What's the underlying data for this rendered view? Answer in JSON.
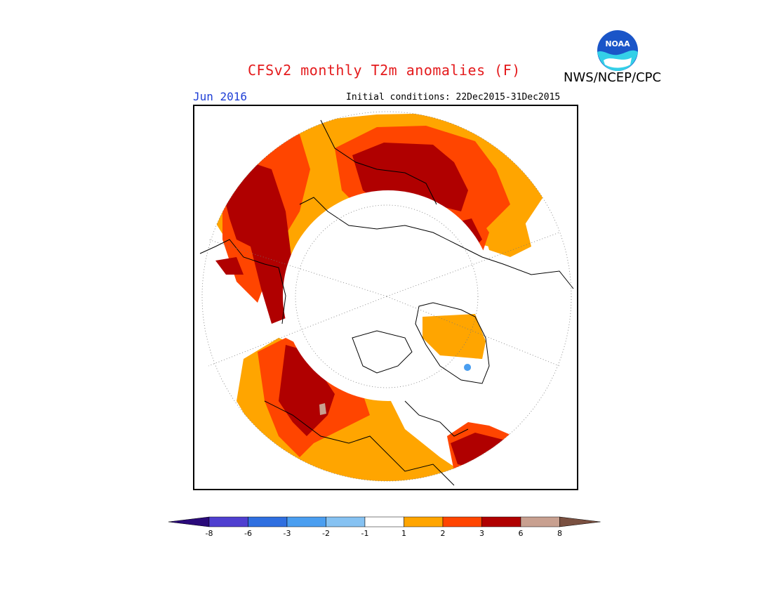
{
  "header": {
    "title": "CFSv2 monthly T2m anomalies (F)",
    "agency": "NWS/NCEP/CPC",
    "month": "Jun 2016",
    "initial_conditions": "Initial conditions: 22Dec2015-31Dec2015",
    "logo_text": "NOAA"
  },
  "colors": {
    "title": "#e41a1c",
    "month": "#1f3fd6",
    "bins": [
      "#2a0a7a",
      "#4f3fd0",
      "#2f6fe0",
      "#4a9ef0",
      "#86c2f2",
      "#ffffff",
      "#ffa500",
      "#ff4500",
      "#b00000",
      "#c8a090",
      "#7a5040"
    ],
    "coast": "#000000"
  },
  "legend": {
    "ticks": [
      "-8",
      "-6",
      "-3",
      "-2",
      "-1",
      "1",
      "2",
      "3",
      "6",
      "8"
    ]
  },
  "map": {
    "projection": "north-polar-stereographic",
    "boundary": "circle",
    "coastlines": true,
    "graticule": "dotted"
  }
}
